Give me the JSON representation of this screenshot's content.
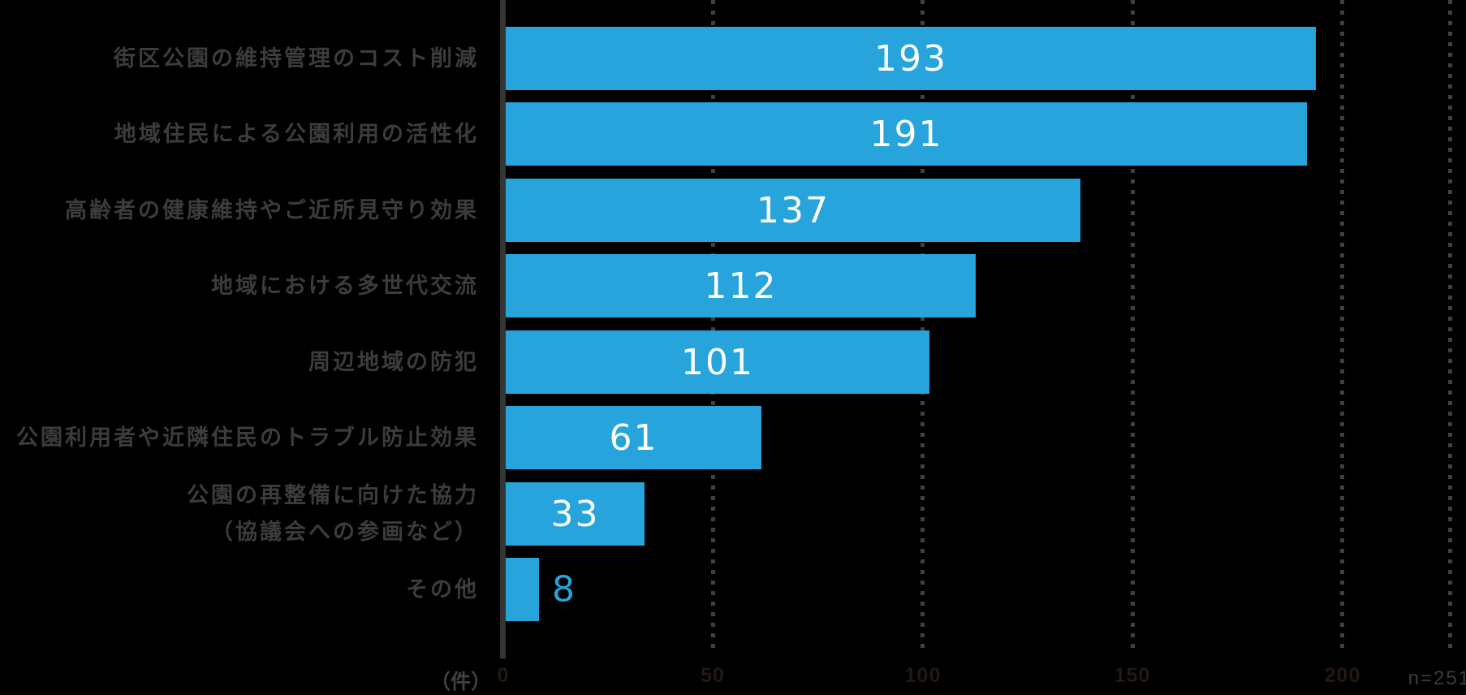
{
  "chart_data": {
    "type": "bar",
    "orientation": "horizontal",
    "title": "",
    "categories": [
      "街区公園の維持管理のコスト削減",
      "地域住民による公園利用の活性化",
      "高齢者の健康維持やご近所見守り効果",
      "地域における多世代交流",
      "周辺地域の防犯",
      "公園利用者や近隣住民のトラブル防止効果",
      "公園の再整備に向けた協力\n（協議会への参画など）",
      "その他"
    ],
    "values": [
      193,
      191,
      137,
      112,
      101,
      61,
      33,
      8
    ],
    "x_ticks": [
      0,
      50,
      100,
      150,
      200
    ],
    "xlim": [
      0,
      225
    ],
    "unit_label": "（件）",
    "sample_label": "n=251",
    "grid": "dotted-vertical",
    "legend": "none",
    "value_labels": "inside bars, white; smallest value (8) outside bar in blue"
  },
  "colors": {
    "background": "#000000",
    "bar": "#26a4db",
    "value_text_inside": "#ffffff",
    "value_text_outside": "#26a4db",
    "category_label": "#3c3c3c",
    "axis_line": "#343434",
    "grid_dots": "#3e4042",
    "tick_label": "#241813",
    "unit_label": "#454040",
    "sample_label": "#403b38"
  }
}
